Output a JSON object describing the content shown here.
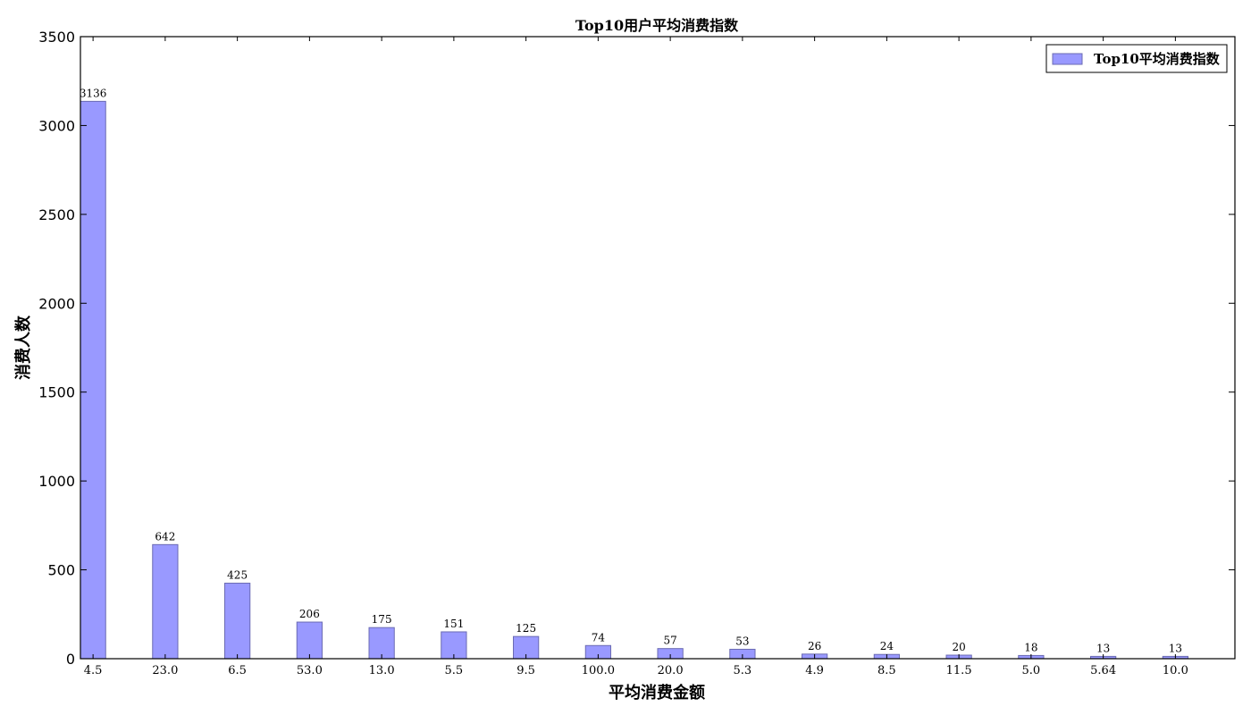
{
  "chart_data": {
    "type": "bar",
    "title": "Top10用户平均消费指数",
    "xlabel": "平均消费金额",
    "ylabel": "消费人数",
    "categories": [
      "4.5",
      "23.0",
      "6.5",
      "53.0",
      "13.0",
      "5.5",
      "9.5",
      "100.0",
      "20.0",
      "5.3",
      "4.9",
      "8.5",
      "11.5",
      "5.0",
      "5.64",
      "10.0"
    ],
    "series": [
      {
        "name": "Top10平均消费指数",
        "values": [
          3136,
          642,
          425,
          206,
          175,
          151,
          125,
          74,
          57,
          53,
          26,
          24,
          20,
          18,
          13,
          13
        ],
        "color": "#9999ff",
        "edge_color": "#6b6bb3"
      }
    ],
    "data_labels": [
      "3136",
      "642",
      "425",
      "206",
      "175",
      "151",
      "125",
      "74",
      "57",
      "53",
      "26",
      "24",
      "20",
      "18",
      "13",
      "13"
    ],
    "ylim": [
      0,
      3500
    ],
    "yticks": [
      "0",
      "500",
      "1000",
      "1500",
      "2000",
      "2500",
      "3000",
      "3500"
    ],
    "legend_position": "top-right",
    "grid": false
  }
}
